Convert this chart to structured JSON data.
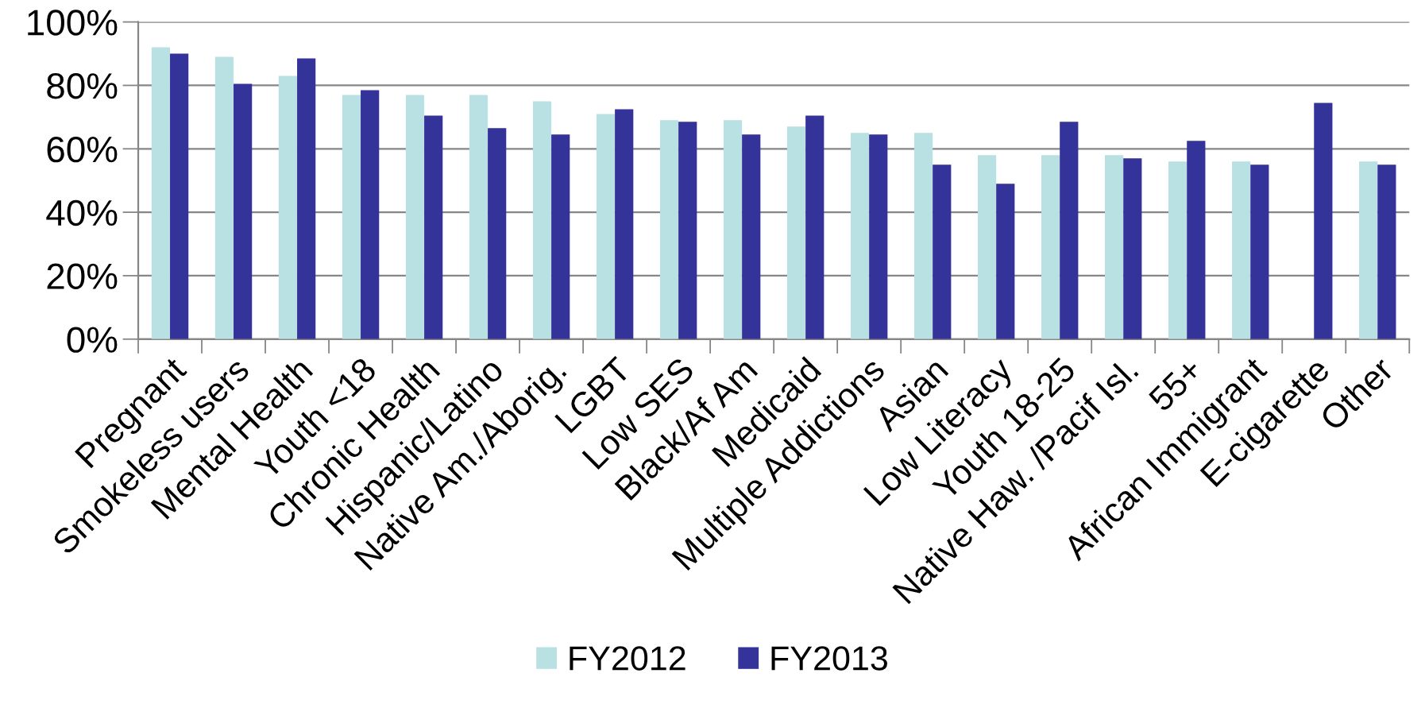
{
  "chart_data": {
    "type": "bar",
    "categories": [
      "Pregnant",
      "Smokeless users",
      "Mental Health",
      "Youth <18",
      "Chronic Health",
      "Hispanic/Latino",
      "Native Am./Aborig.",
      "LGBT",
      "Low SES",
      "Black/Af Am",
      "Medicaid",
      "Multiple Addictions",
      "Asian",
      "Low Literacy",
      "Youth 18-25",
      "Native Haw. /Pacif Isl.",
      "55+",
      "African Immigrant",
      "E-cigarette",
      "Other"
    ],
    "series": [
      {
        "name": "FY2012",
        "color": "#b9e0e3",
        "values": [
          92,
          89,
          83,
          77,
          77,
          77,
          75,
          71,
          69,
          69,
          67,
          65,
          65,
          58,
          58,
          58,
          56,
          56,
          null,
          56
        ]
      },
      {
        "name": "FY2013",
        "color": "#343399",
        "values": [
          90,
          80.5,
          88.5,
          78.5,
          70.5,
          66.5,
          64.5,
          72.5,
          68.5,
          64.5,
          70.5,
          64.5,
          55,
          49,
          68.5,
          57,
          62.5,
          55,
          74.5,
          55
        ]
      }
    ],
    "ylim": [
      0,
      100
    ],
    "yticks": [
      {
        "value": 0,
        "label": "0%"
      },
      {
        "value": 20,
        "label": "20%"
      },
      {
        "value": 40,
        "label": "40%"
      },
      {
        "value": 60,
        "label": "60%"
      },
      {
        "value": 80,
        "label": "80%"
      },
      {
        "value": 100,
        "label": "100%"
      }
    ],
    "grid": "y",
    "legend": "bottom"
  }
}
